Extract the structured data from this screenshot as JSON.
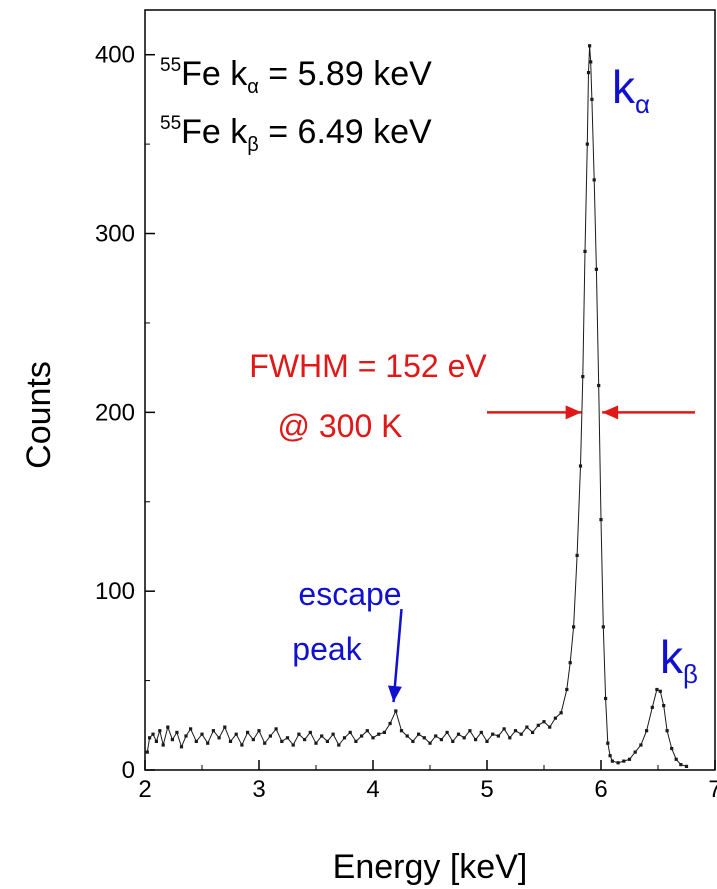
{
  "chart_data": {
    "type": "scatter",
    "xlabel": "Energy [keV]",
    "ylabel": "Counts",
    "xlim": [
      2,
      7
    ],
    "ylim": [
      0,
      425
    ],
    "x_ticks": [
      "2",
      "3",
      "4",
      "5",
      "6",
      "7"
    ],
    "y_ticks": [
      "0",
      "100",
      "200",
      "300",
      "400"
    ],
    "series": [
      {
        "points": [
          [
            2.02,
            10
          ],
          [
            2.04,
            18
          ],
          [
            2.07,
            20
          ],
          [
            2.1,
            16
          ],
          [
            2.13,
            22
          ],
          [
            2.16,
            14
          ],
          [
            2.2,
            24
          ],
          [
            2.24,
            17
          ],
          [
            2.28,
            21
          ],
          [
            2.32,
            13
          ],
          [
            2.36,
            19
          ],
          [
            2.4,
            23
          ],
          [
            2.45,
            16
          ],
          [
            2.5,
            20
          ],
          [
            2.55,
            15
          ],
          [
            2.6,
            22
          ],
          [
            2.65,
            18
          ],
          [
            2.7,
            24
          ],
          [
            2.75,
            16
          ],
          [
            2.8,
            20
          ],
          [
            2.85,
            14
          ],
          [
            2.9,
            21
          ],
          [
            2.95,
            17
          ],
          [
            3.0,
            22
          ],
          [
            3.05,
            15
          ],
          [
            3.1,
            19
          ],
          [
            3.15,
            23
          ],
          [
            3.2,
            16
          ],
          [
            3.25,
            18
          ],
          [
            3.3,
            14
          ],
          [
            3.35,
            20
          ],
          [
            3.4,
            17
          ],
          [
            3.45,
            21
          ],
          [
            3.5,
            15
          ],
          [
            3.55,
            19
          ],
          [
            3.6,
            16
          ],
          [
            3.65,
            20
          ],
          [
            3.7,
            14
          ],
          [
            3.75,
            18
          ],
          [
            3.8,
            21
          ],
          [
            3.85,
            16
          ],
          [
            3.9,
            19
          ],
          [
            3.95,
            22
          ],
          [
            4.0,
            18
          ],
          [
            4.05,
            20
          ],
          [
            4.1,
            21
          ],
          [
            4.15,
            26
          ],
          [
            4.2,
            33
          ],
          [
            4.25,
            22
          ],
          [
            4.3,
            19
          ],
          [
            4.35,
            16
          ],
          [
            4.4,
            20
          ],
          [
            4.45,
            18
          ],
          [
            4.5,
            15
          ],
          [
            4.55,
            19
          ],
          [
            4.6,
            17
          ],
          [
            4.65,
            21
          ],
          [
            4.7,
            16
          ],
          [
            4.75,
            20
          ],
          [
            4.8,
            18
          ],
          [
            4.85,
            22
          ],
          [
            4.9,
            17
          ],
          [
            4.95,
            21
          ],
          [
            5.0,
            16
          ],
          [
            5.05,
            20
          ],
          [
            5.1,
            19
          ],
          [
            5.15,
            23
          ],
          [
            5.2,
            18
          ],
          [
            5.25,
            22
          ],
          [
            5.3,
            20
          ],
          [
            5.35,
            24
          ],
          [
            5.4,
            21
          ],
          [
            5.45,
            25
          ],
          [
            5.5,
            27
          ],
          [
            5.55,
            24
          ],
          [
            5.6,
            29
          ],
          [
            5.65,
            32
          ],
          [
            5.7,
            45
          ],
          [
            5.73,
            60
          ],
          [
            5.76,
            80
          ],
          [
            5.79,
            120
          ],
          [
            5.82,
            170
          ],
          [
            5.84,
            220
          ],
          [
            5.86,
            290
          ],
          [
            5.88,
            350
          ],
          [
            5.89,
            390
          ],
          [
            5.9,
            405
          ],
          [
            5.91,
            396
          ],
          [
            5.92,
            375
          ],
          [
            5.94,
            330
          ],
          [
            5.96,
            280
          ],
          [
            5.98,
            215
          ],
          [
            6.0,
            140
          ],
          [
            6.02,
            80
          ],
          [
            6.04,
            40
          ],
          [
            6.06,
            15
          ],
          [
            6.08,
            8
          ],
          [
            6.1,
            5
          ],
          [
            6.15,
            4
          ],
          [
            6.2,
            5
          ],
          [
            6.25,
            6
          ],
          [
            6.3,
            10
          ],
          [
            6.35,
            14
          ],
          [
            6.4,
            22
          ],
          [
            6.45,
            35
          ],
          [
            6.49,
            45
          ],
          [
            6.52,
            44
          ],
          [
            6.55,
            36
          ],
          [
            6.58,
            22
          ],
          [
            6.62,
            12
          ],
          [
            6.66,
            6
          ],
          [
            6.7,
            3
          ],
          [
            6.75,
            2
          ]
        ]
      }
    ],
    "annotations": {
      "ka_line": {
        "pre": "55",
        "element": "Fe k",
        "sub": "α",
        "post": " = 5.89 keV"
      },
      "kb_line": {
        "pre": "55",
        "element": "Fe k",
        "sub": "β",
        "post": " = 6.49 keV"
      },
      "ka_peak": {
        "main": "k",
        "sub": "α"
      },
      "kb_peak": {
        "main": "k",
        "sub": "β"
      },
      "fwhm_line1": "FWHM = 152 eV",
      "fwhm_line2": "@ 300 K",
      "escape_line1": "escape",
      "escape_line2": "peak",
      "arrow_y": 200,
      "arrow_left_from": 5.0,
      "arrow_left_to": 5.83,
      "arrow_right_from": 7.0,
      "arrow_right_to": 6.01,
      "escape_arrow_from": [
        4.25,
        90
      ],
      "escape_arrow_to": [
        4.18,
        38
      ]
    },
    "colors": {
      "data": "#1a1a1a",
      "axis": "#000000",
      "blue": "#1010d0",
      "red": "#e01818"
    }
  }
}
